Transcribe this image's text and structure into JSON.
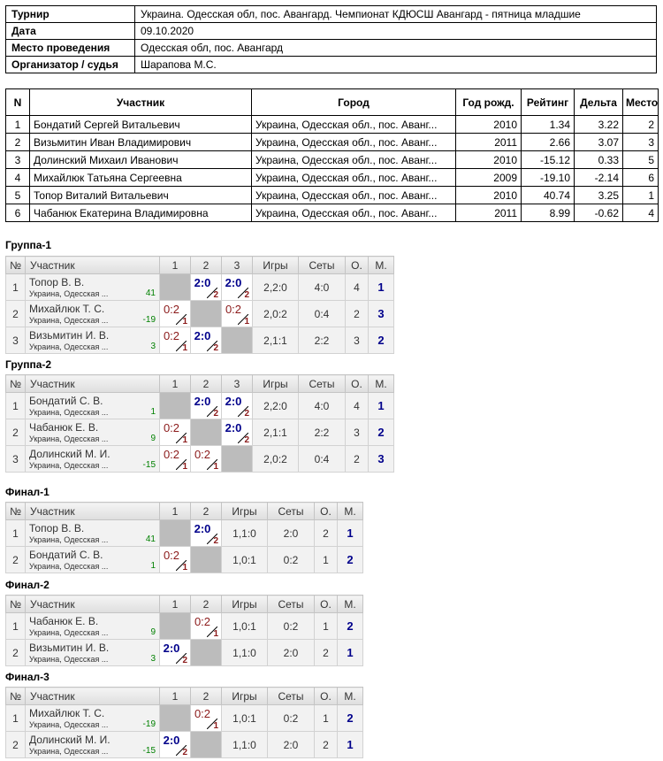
{
  "info": [
    {
      "key": "Турнир",
      "value": "Украина. Одесская обл, пос. Авангард. Чемпионат КДЮСШ Авангард - пятница младшие"
    },
    {
      "key": "Дата",
      "value": "09.10.2020"
    },
    {
      "key": "Место проведения",
      "value": "Одесская обл, пос. Авангард"
    },
    {
      "key": "Организатор / судья",
      "value": "Шарапова М.С."
    }
  ],
  "participants": {
    "headers": [
      "N",
      "Участник",
      "Город",
      "Год рожд.",
      "Рейтинг",
      "Дельта",
      "Место"
    ],
    "rows": [
      {
        "n": "1",
        "name": "Бондатий Сергей Витальевич",
        "city": "Украина, Одесская обл., пос. Аванг...",
        "year": "2010",
        "rating": "1.34",
        "delta": "3.22",
        "place": "2"
      },
      {
        "n": "2",
        "name": "Визьмитин Иван Владимирович",
        "city": "Украина, Одесская обл., пос. Аванг...",
        "year": "2011",
        "rating": "2.66",
        "delta": "3.07",
        "place": "3"
      },
      {
        "n": "3",
        "name": "Долинский Михаил Иванович",
        "city": "Украина, Одесская обл., пос. Аванг...",
        "year": "2010",
        "rating": "-15.12",
        "delta": "0.33",
        "place": "5"
      },
      {
        "n": "4",
        "name": "Михайлюк Татьяна Сергеевна",
        "city": "Украина, Одесская обл., пос. Аванг...",
        "year": "2009",
        "rating": "-19.10",
        "delta": "-2.14",
        "place": "6"
      },
      {
        "n": "5",
        "name": "Топор Виталий Витальевич",
        "city": "Украина, Одесская обл., пос. Аванг...",
        "year": "2010",
        "rating": "40.74",
        "delta": "3.25",
        "place": "1"
      },
      {
        "n": "6",
        "name": "Чабанюк Екатерина Владимировна",
        "city": "Украина, Одесская обл., пос. Аванг...",
        "year": "2011",
        "rating": "8.99",
        "delta": "-0.62",
        "place": "4"
      }
    ]
  },
  "group_headers": {
    "num": "№",
    "player": "Участник",
    "games": "Игры",
    "sets": "Сеты",
    "points": "О.",
    "place": "М."
  },
  "groups": [
    {
      "title": "Группа-1",
      "cols": [
        "1",
        "2",
        "3"
      ],
      "rows": [
        {
          "n": "1",
          "name": "Топор В. В.",
          "sub": "Украина, Одесская ...",
          "rating": "41",
          "cells": [
            null,
            {
              "s": "2:0",
              "w": true,
              "m": "2"
            },
            {
              "s": "2:0",
              "w": true,
              "m": "2"
            }
          ],
          "games": "2,2:0",
          "sets": "4:0",
          "points": "4",
          "place": "1"
        },
        {
          "n": "2",
          "name": "Михайлюк Т. С.",
          "sub": "Украина, Одесская ...",
          "rating": "-19",
          "cells": [
            {
              "s": "0:2",
              "w": false,
              "m": "1"
            },
            null,
            {
              "s": "0:2",
              "w": false,
              "m": "1"
            }
          ],
          "games": "2,0:2",
          "sets": "0:4",
          "points": "2",
          "place": "3"
        },
        {
          "n": "3",
          "name": "Визьмитин И. В.",
          "sub": "Украина, Одесская ...",
          "rating": "3",
          "cells": [
            {
              "s": "0:2",
              "w": false,
              "m": "1"
            },
            {
              "s": "2:0",
              "w": true,
              "m": "2"
            },
            null
          ],
          "games": "2,1:1",
          "sets": "2:2",
          "points": "3",
          "place": "2"
        }
      ]
    },
    {
      "title": "Группа-2",
      "cols": [
        "1",
        "2",
        "3"
      ],
      "rows": [
        {
          "n": "1",
          "name": "Бондатий С. В.",
          "sub": "Украина, Одесская ...",
          "rating": "1",
          "cells": [
            null,
            {
              "s": "2:0",
              "w": true,
              "m": "2"
            },
            {
              "s": "2:0",
              "w": true,
              "m": "2"
            }
          ],
          "games": "2,2:0",
          "sets": "4:0",
          "points": "4",
          "place": "1"
        },
        {
          "n": "2",
          "name": "Чабанюк Е. В.",
          "sub": "Украина, Одесская ...",
          "rating": "9",
          "cells": [
            {
              "s": "0:2",
              "w": false,
              "m": "1"
            },
            null,
            {
              "s": "2:0",
              "w": true,
              "m": "2"
            }
          ],
          "games": "2,1:1",
          "sets": "2:2",
          "points": "3",
          "place": "2"
        },
        {
          "n": "3",
          "name": "Долинский М. И.",
          "sub": "Украина, Одесская ...",
          "rating": "-15",
          "cells": [
            {
              "s": "0:2",
              "w": false,
              "m": "1"
            },
            {
              "s": "0:2",
              "w": false,
              "m": "1"
            },
            null
          ],
          "games": "2,0:2",
          "sets": "0:4",
          "points": "2",
          "place": "3"
        }
      ]
    },
    {
      "title": "Финал-1",
      "cols": [
        "1",
        "2"
      ],
      "rows": [
        {
          "n": "1",
          "name": "Топор В. В.",
          "sub": "Украина, Одесская ...",
          "rating": "41",
          "cells": [
            null,
            {
              "s": "2:0",
              "w": true,
              "m": "2"
            }
          ],
          "games": "1,1:0",
          "sets": "2:0",
          "points": "2",
          "place": "1"
        },
        {
          "n": "2",
          "name": "Бондатий С. В.",
          "sub": "Украина, Одесская ...",
          "rating": "1",
          "cells": [
            {
              "s": "0:2",
              "w": false,
              "m": "1"
            },
            null
          ],
          "games": "1,0:1",
          "sets": "0:2",
          "points": "1",
          "place": "2"
        }
      ]
    },
    {
      "title": "Финал-2",
      "cols": [
        "1",
        "2"
      ],
      "rows": [
        {
          "n": "1",
          "name": "Чабанюк Е. В.",
          "sub": "Украина, Одесская ...",
          "rating": "9",
          "cells": [
            null,
            {
              "s": "0:2",
              "w": false,
              "m": "1"
            }
          ],
          "games": "1,0:1",
          "sets": "0:2",
          "points": "1",
          "place": "2"
        },
        {
          "n": "2",
          "name": "Визьмитин И. В.",
          "sub": "Украина, Одесская ...",
          "rating": "3",
          "cells": [
            {
              "s": "2:0",
              "w": true,
              "m": "2"
            },
            null
          ],
          "games": "1,1:0",
          "sets": "2:0",
          "points": "2",
          "place": "1"
        }
      ]
    },
    {
      "title": "Финал-3",
      "cols": [
        "1",
        "2"
      ],
      "rows": [
        {
          "n": "1",
          "name": "Михайлюк Т. С.",
          "sub": "Украина, Одесская ...",
          "rating": "-19",
          "cells": [
            null,
            {
              "s": "0:2",
              "w": false,
              "m": "1"
            }
          ],
          "games": "1,0:1",
          "sets": "0:2",
          "points": "1",
          "place": "2"
        },
        {
          "n": "2",
          "name": "Долинский М. И.",
          "sub": "Украина, Одесская ...",
          "rating": "-15",
          "cells": [
            {
              "s": "2:0",
              "w": true,
              "m": "2"
            },
            null
          ],
          "games": "1,1:0",
          "sets": "2:0",
          "points": "2",
          "place": "1"
        }
      ]
    }
  ]
}
